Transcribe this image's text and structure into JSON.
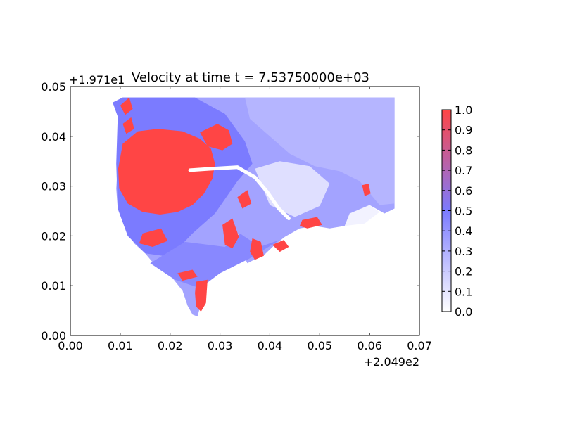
{
  "chart_data": {
    "type": "heatmap",
    "title": "Velocity at time t = 7.53750000e+03",
    "xlim": [
      0.0,
      0.07
    ],
    "ylim": [
      0.0,
      0.05
    ],
    "x_ticks": [
      {
        "value": 0.0,
        "label": "0.00"
      },
      {
        "value": 0.01,
        "label": "0.01"
      },
      {
        "value": 0.02,
        "label": "0.02"
      },
      {
        "value": 0.03,
        "label": "0.03"
      },
      {
        "value": 0.04,
        "label": "0.04"
      },
      {
        "value": 0.05,
        "label": "0.05"
      },
      {
        "value": 0.06,
        "label": "0.06"
      },
      {
        "value": 0.07,
        "label": "0.07"
      }
    ],
    "y_ticks": [
      {
        "value": 0.0,
        "label": "0.00"
      },
      {
        "value": 0.01,
        "label": "0.01"
      },
      {
        "value": 0.02,
        "label": "0.02"
      },
      {
        "value": 0.03,
        "label": "0.03"
      },
      {
        "value": 0.04,
        "label": "0.04"
      },
      {
        "value": 0.05,
        "label": "0.05"
      }
    ],
    "x_offset_label": "+2.049e2",
    "y_offset_label": "+1.971e1",
    "colorbar": {
      "range": [
        0.0,
        1.0
      ],
      "ticks": [
        {
          "value": 0.0,
          "label": "0.0"
        },
        {
          "value": 0.1,
          "label": "0.1"
        },
        {
          "value": 0.2,
          "label": "0.2"
        },
        {
          "value": 0.3,
          "label": "0.3"
        },
        {
          "value": 0.4,
          "label": "0.4"
        },
        {
          "value": 0.5,
          "label": "0.5"
        },
        {
          "value": 0.6,
          "label": "0.6"
        },
        {
          "value": 0.7,
          "label": "0.7"
        },
        {
          "value": 0.8,
          "label": "0.8"
        },
        {
          "value": 0.9,
          "label": "0.9"
        },
        {
          "value": 1.0,
          "label": "1.0"
        }
      ],
      "colormap": [
        "#ffffff",
        "#7b7bff",
        "#ff4545"
      ]
    },
    "domain_outline": [
      [
        0.0105,
        0.0478
      ],
      [
        0.065,
        0.0478
      ],
      [
        0.065,
        0.0255
      ],
      [
        0.063,
        0.0245
      ],
      [
        0.06,
        0.0262
      ],
      [
        0.058,
        0.0235
      ],
      [
        0.055,
        0.022
      ],
      [
        0.052,
        0.0215
      ],
      [
        0.049,
        0.022
      ],
      [
        0.046,
        0.0215
      ],
      [
        0.043,
        0.0198
      ],
      [
        0.041,
        0.0182
      ],
      [
        0.039,
        0.0163
      ],
      [
        0.037,
        0.0153
      ],
      [
        0.0355,
        0.0145
      ],
      [
        0.035,
        0.0155
      ],
      [
        0.0353,
        0.018
      ],
      [
        0.035,
        0.0198
      ],
      [
        0.0335,
        0.0205
      ],
      [
        0.032,
        0.0198
      ],
      [
        0.031,
        0.0165
      ],
      [
        0.0295,
        0.0135
      ],
      [
        0.028,
        0.0118
      ],
      [
        0.0268,
        0.0095
      ],
      [
        0.0262,
        0.0065
      ],
      [
        0.0255,
        0.0038
      ],
      [
        0.0245,
        0.0042
      ],
      [
        0.0235,
        0.006
      ],
      [
        0.0225,
        0.009
      ],
      [
        0.0205,
        0.0115
      ],
      [
        0.0175,
        0.0135
      ],
      [
        0.015,
        0.0165
      ],
      [
        0.0128,
        0.0185
      ],
      [
        0.011,
        0.0215
      ],
      [
        0.0095,
        0.0255
      ],
      [
        0.0092,
        0.0295
      ],
      [
        0.0095,
        0.0345
      ],
      [
        0.0098,
        0.0395
      ],
      [
        0.0095,
        0.044
      ],
      [
        0.0085,
        0.0468
      ],
      [
        0.0105,
        0.0478
      ]
    ],
    "regions": [
      {
        "value": 0.28,
        "points": [
          [
            0.035,
            0.0478
          ],
          [
            0.065,
            0.0478
          ],
          [
            0.065,
            0.0265
          ],
          [
            0.062,
            0.0262
          ],
          [
            0.058,
            0.031
          ],
          [
            0.054,
            0.033
          ],
          [
            0.049,
            0.034
          ],
          [
            0.044,
            0.0365
          ],
          [
            0.04,
            0.04
          ],
          [
            0.036,
            0.0435
          ]
        ]
      },
      {
        "value": 0.5,
        "points": [
          [
            0.0105,
            0.0478
          ],
          [
            0.025,
            0.0478
          ],
          [
            0.031,
            0.0445
          ],
          [
            0.035,
            0.039
          ],
          [
            0.0365,
            0.0345
          ],
          [
            0.0335,
            0.031
          ],
          [
            0.029,
            0.0245
          ],
          [
            0.0245,
            0.0205
          ],
          [
            0.02,
            0.0158
          ],
          [
            0.015,
            0.0165
          ],
          [
            0.0115,
            0.02
          ],
          [
            0.0095,
            0.0255
          ],
          [
            0.0092,
            0.0345
          ],
          [
            0.0095,
            0.044
          ],
          [
            0.0085,
            0.0468
          ]
        ]
      },
      {
        "value": 0.45,
        "points": [
          [
            0.023,
            0.0188
          ],
          [
            0.031,
            0.0178
          ],
          [
            0.034,
            0.0205
          ],
          [
            0.038,
            0.0178
          ],
          [
            0.042,
            0.0192
          ],
          [
            0.036,
            0.0155
          ],
          [
            0.03,
            0.0125
          ],
          [
            0.026,
            0.0095
          ],
          [
            0.021,
            0.0112
          ],
          [
            0.016,
            0.0145
          ]
        ]
      },
      {
        "value": 0.12,
        "points": [
          [
            0.037,
            0.0335
          ],
          [
            0.042,
            0.035
          ],
          [
            0.048,
            0.034
          ],
          [
            0.052,
            0.0305
          ],
          [
            0.05,
            0.026
          ],
          [
            0.045,
            0.0238
          ],
          [
            0.04,
            0.0262
          ]
        ]
      },
      {
        "value": 0.05,
        "points": [
          [
            0.056,
            0.0245
          ],
          [
            0.06,
            0.0262
          ],
          [
            0.062,
            0.0248
          ],
          [
            0.059,
            0.0225
          ],
          [
            0.055,
            0.022
          ]
        ]
      },
      {
        "value": 1.0,
        "points": [
          [
            0.0105,
            0.0385
          ],
          [
            0.0135,
            0.041
          ],
          [
            0.0175,
            0.0415
          ],
          [
            0.0225,
            0.041
          ],
          [
            0.026,
            0.0395
          ],
          [
            0.0282,
            0.0375
          ],
          [
            0.029,
            0.0345
          ],
          [
            0.0285,
            0.0315
          ],
          [
            0.0268,
            0.0285
          ],
          [
            0.0245,
            0.0262
          ],
          [
            0.0215,
            0.0248
          ],
          [
            0.018,
            0.0243
          ],
          [
            0.0145,
            0.0248
          ],
          [
            0.0115,
            0.0265
          ],
          [
            0.0098,
            0.0295
          ],
          [
            0.0096,
            0.0335
          ]
        ]
      },
      {
        "value": 1.0,
        "points": [
          [
            0.026,
            0.0408
          ],
          [
            0.0295,
            0.0425
          ],
          [
            0.0318,
            0.0412
          ],
          [
            0.0325,
            0.0385
          ],
          [
            0.0305,
            0.0372
          ],
          [
            0.0275,
            0.038
          ]
        ]
      },
      {
        "value": 1.0,
        "points": [
          [
            0.01,
            0.0462
          ],
          [
            0.0118,
            0.0478
          ],
          [
            0.0125,
            0.0455
          ],
          [
            0.011,
            0.0443
          ]
        ]
      },
      {
        "value": 1.0,
        "points": [
          [
            0.0105,
            0.0425
          ],
          [
            0.0122,
            0.0438
          ],
          [
            0.0128,
            0.0415
          ],
          [
            0.0112,
            0.0405
          ]
        ]
      },
      {
        "value": 1.0,
        "points": [
          [
            0.0145,
            0.0205
          ],
          [
            0.0182,
            0.0215
          ],
          [
            0.0195,
            0.019
          ],
          [
            0.0165,
            0.0178
          ],
          [
            0.0138,
            0.0185
          ]
        ]
      },
      {
        "value": 1.0,
        "points": [
          [
            0.0305,
            0.0222
          ],
          [
            0.0325,
            0.0235
          ],
          [
            0.0338,
            0.0198
          ],
          [
            0.0325,
            0.0175
          ],
          [
            0.031,
            0.0182
          ]
        ]
      },
      {
        "value": 1.0,
        "points": [
          [
            0.0335,
            0.0278
          ],
          [
            0.0355,
            0.0292
          ],
          [
            0.0363,
            0.0265
          ],
          [
            0.0345,
            0.0255
          ]
        ]
      },
      {
        "value": 1.0,
        "points": [
          [
            0.0365,
            0.0195
          ],
          [
            0.0382,
            0.0188
          ],
          [
            0.0388,
            0.016
          ],
          [
            0.037,
            0.0152
          ],
          [
            0.036,
            0.0168
          ]
        ]
      },
      {
        "value": 1.0,
        "points": [
          [
            0.0405,
            0.0182
          ],
          [
            0.0428,
            0.0192
          ],
          [
            0.0438,
            0.0178
          ],
          [
            0.042,
            0.0168
          ]
        ]
      },
      {
        "value": 1.0,
        "points": [
          [
            0.0465,
            0.0232
          ],
          [
            0.0495,
            0.0238
          ],
          [
            0.0505,
            0.0222
          ],
          [
            0.0475,
            0.0215
          ],
          [
            0.046,
            0.022
          ]
        ]
      },
      {
        "value": 1.0,
        "points": [
          [
            0.0215,
            0.0125
          ],
          [
            0.0245,
            0.0132
          ],
          [
            0.0255,
            0.0118
          ],
          [
            0.0225,
            0.011
          ]
        ]
      },
      {
        "value": 1.0,
        "points": [
          [
            0.0252,
            0.0108
          ],
          [
            0.0275,
            0.0112
          ],
          [
            0.0272,
            0.0065
          ],
          [
            0.0262,
            0.0048
          ],
          [
            0.0252,
            0.0058
          ],
          [
            0.025,
            0.0085
          ]
        ]
      },
      {
        "value": 1.0,
        "points": [
          [
            0.0585,
            0.0302
          ],
          [
            0.0598,
            0.0305
          ],
          [
            0.0602,
            0.0285
          ],
          [
            0.059,
            0.028
          ]
        ]
      }
    ],
    "streaks": [
      {
        "value": 0.0,
        "points": [
          [
            0.024,
            0.0332
          ],
          [
            0.0285,
            0.0335
          ],
          [
            0.0335,
            0.0338
          ],
          [
            0.037,
            0.0318
          ],
          [
            0.0395,
            0.0288
          ],
          [
            0.0418,
            0.0255
          ],
          [
            0.0438,
            0.0235
          ]
        ]
      }
    ]
  }
}
